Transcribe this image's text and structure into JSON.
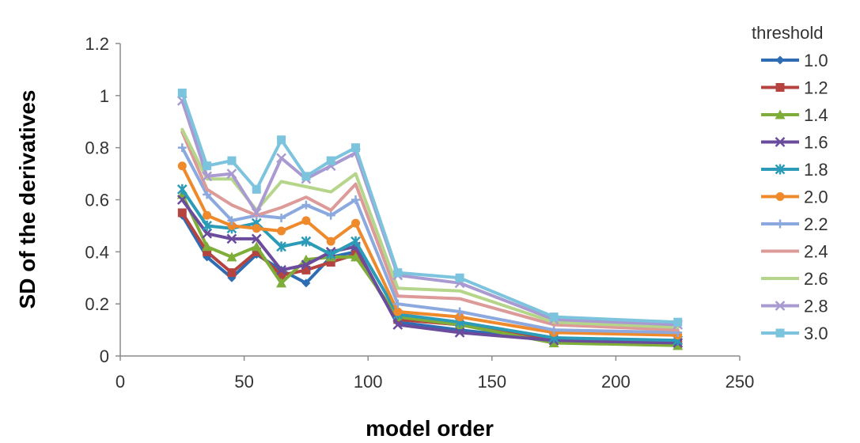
{
  "chart_data": {
    "type": "line",
    "xlabel": "model order",
    "ylabel": "SD of the derivatives",
    "xlim": [
      0,
      250
    ],
    "ylim": [
      0,
      1.2
    ],
    "xticks": [
      "0",
      "50",
      "100",
      "150",
      "200",
      "250"
    ],
    "yticks": [
      "0",
      "0.2",
      "0.4",
      "0.6",
      "0.8",
      "1",
      "1.2"
    ],
    "grid": false,
    "legend_title": "threshold",
    "legend_position": "right",
    "x": [
      25,
      35,
      45,
      55,
      65,
      75,
      85,
      95,
      112,
      137,
      175,
      225
    ],
    "series": [
      {
        "name": "1.0",
        "color": "#2e6db4",
        "marker": "diamond",
        "values": [
          0.54,
          0.38,
          0.3,
          0.39,
          0.33,
          0.28,
          0.38,
          0.4,
          0.13,
          0.1,
          0.06,
          0.05
        ]
      },
      {
        "name": "1.2",
        "color": "#b5433f",
        "marker": "square",
        "values": [
          0.55,
          0.4,
          0.32,
          0.4,
          0.31,
          0.33,
          0.36,
          0.39,
          0.14,
          0.12,
          0.06,
          0.05
        ]
      },
      {
        "name": "1.4",
        "color": "#7fad3a",
        "marker": "triangle",
        "values": [
          0.62,
          0.42,
          0.38,
          0.42,
          0.28,
          0.37,
          0.38,
          0.38,
          0.15,
          0.12,
          0.05,
          0.04
        ]
      },
      {
        "name": "1.6",
        "color": "#6a4b9c",
        "marker": "x",
        "values": [
          0.6,
          0.47,
          0.45,
          0.45,
          0.33,
          0.35,
          0.4,
          0.42,
          0.12,
          0.09,
          0.06,
          0.05
        ]
      },
      {
        "name": "1.8",
        "color": "#2b9bb8",
        "marker": "star",
        "values": [
          0.64,
          0.5,
          0.49,
          0.51,
          0.42,
          0.44,
          0.39,
          0.44,
          0.16,
          0.13,
          0.07,
          0.06
        ]
      },
      {
        "name": "2.0",
        "color": "#ef8a2c",
        "marker": "circle",
        "values": [
          0.73,
          0.54,
          0.5,
          0.49,
          0.48,
          0.52,
          0.44,
          0.51,
          0.17,
          0.15,
          0.09,
          0.08
        ]
      },
      {
        "name": "2.2",
        "color": "#8ca9df",
        "marker": "plus",
        "values": [
          0.8,
          0.62,
          0.52,
          0.54,
          0.53,
          0.58,
          0.54,
          0.6,
          0.2,
          0.17,
          0.1,
          0.09
        ]
      },
      {
        "name": "2.4",
        "color": "#dc9a98",
        "marker": "none",
        "values": [
          0.86,
          0.64,
          0.58,
          0.54,
          0.57,
          0.61,
          0.56,
          0.66,
          0.23,
          0.22,
          0.12,
          0.1
        ]
      },
      {
        "name": "2.6",
        "color": "#b5d68a",
        "marker": "none",
        "values": [
          0.87,
          0.68,
          0.68,
          0.56,
          0.67,
          0.65,
          0.63,
          0.7,
          0.26,
          0.25,
          0.13,
          0.11
        ]
      },
      {
        "name": "2.8",
        "color": "#a99bd1",
        "marker": "x",
        "values": [
          0.98,
          0.69,
          0.7,
          0.55,
          0.76,
          0.68,
          0.73,
          0.78,
          0.31,
          0.28,
          0.14,
          0.12
        ]
      },
      {
        "name": "3.0",
        "color": "#7cc3dd",
        "marker": "square",
        "values": [
          1.01,
          0.73,
          0.75,
          0.64,
          0.83,
          0.69,
          0.75,
          0.8,
          0.32,
          0.3,
          0.15,
          0.13
        ]
      }
    ]
  }
}
